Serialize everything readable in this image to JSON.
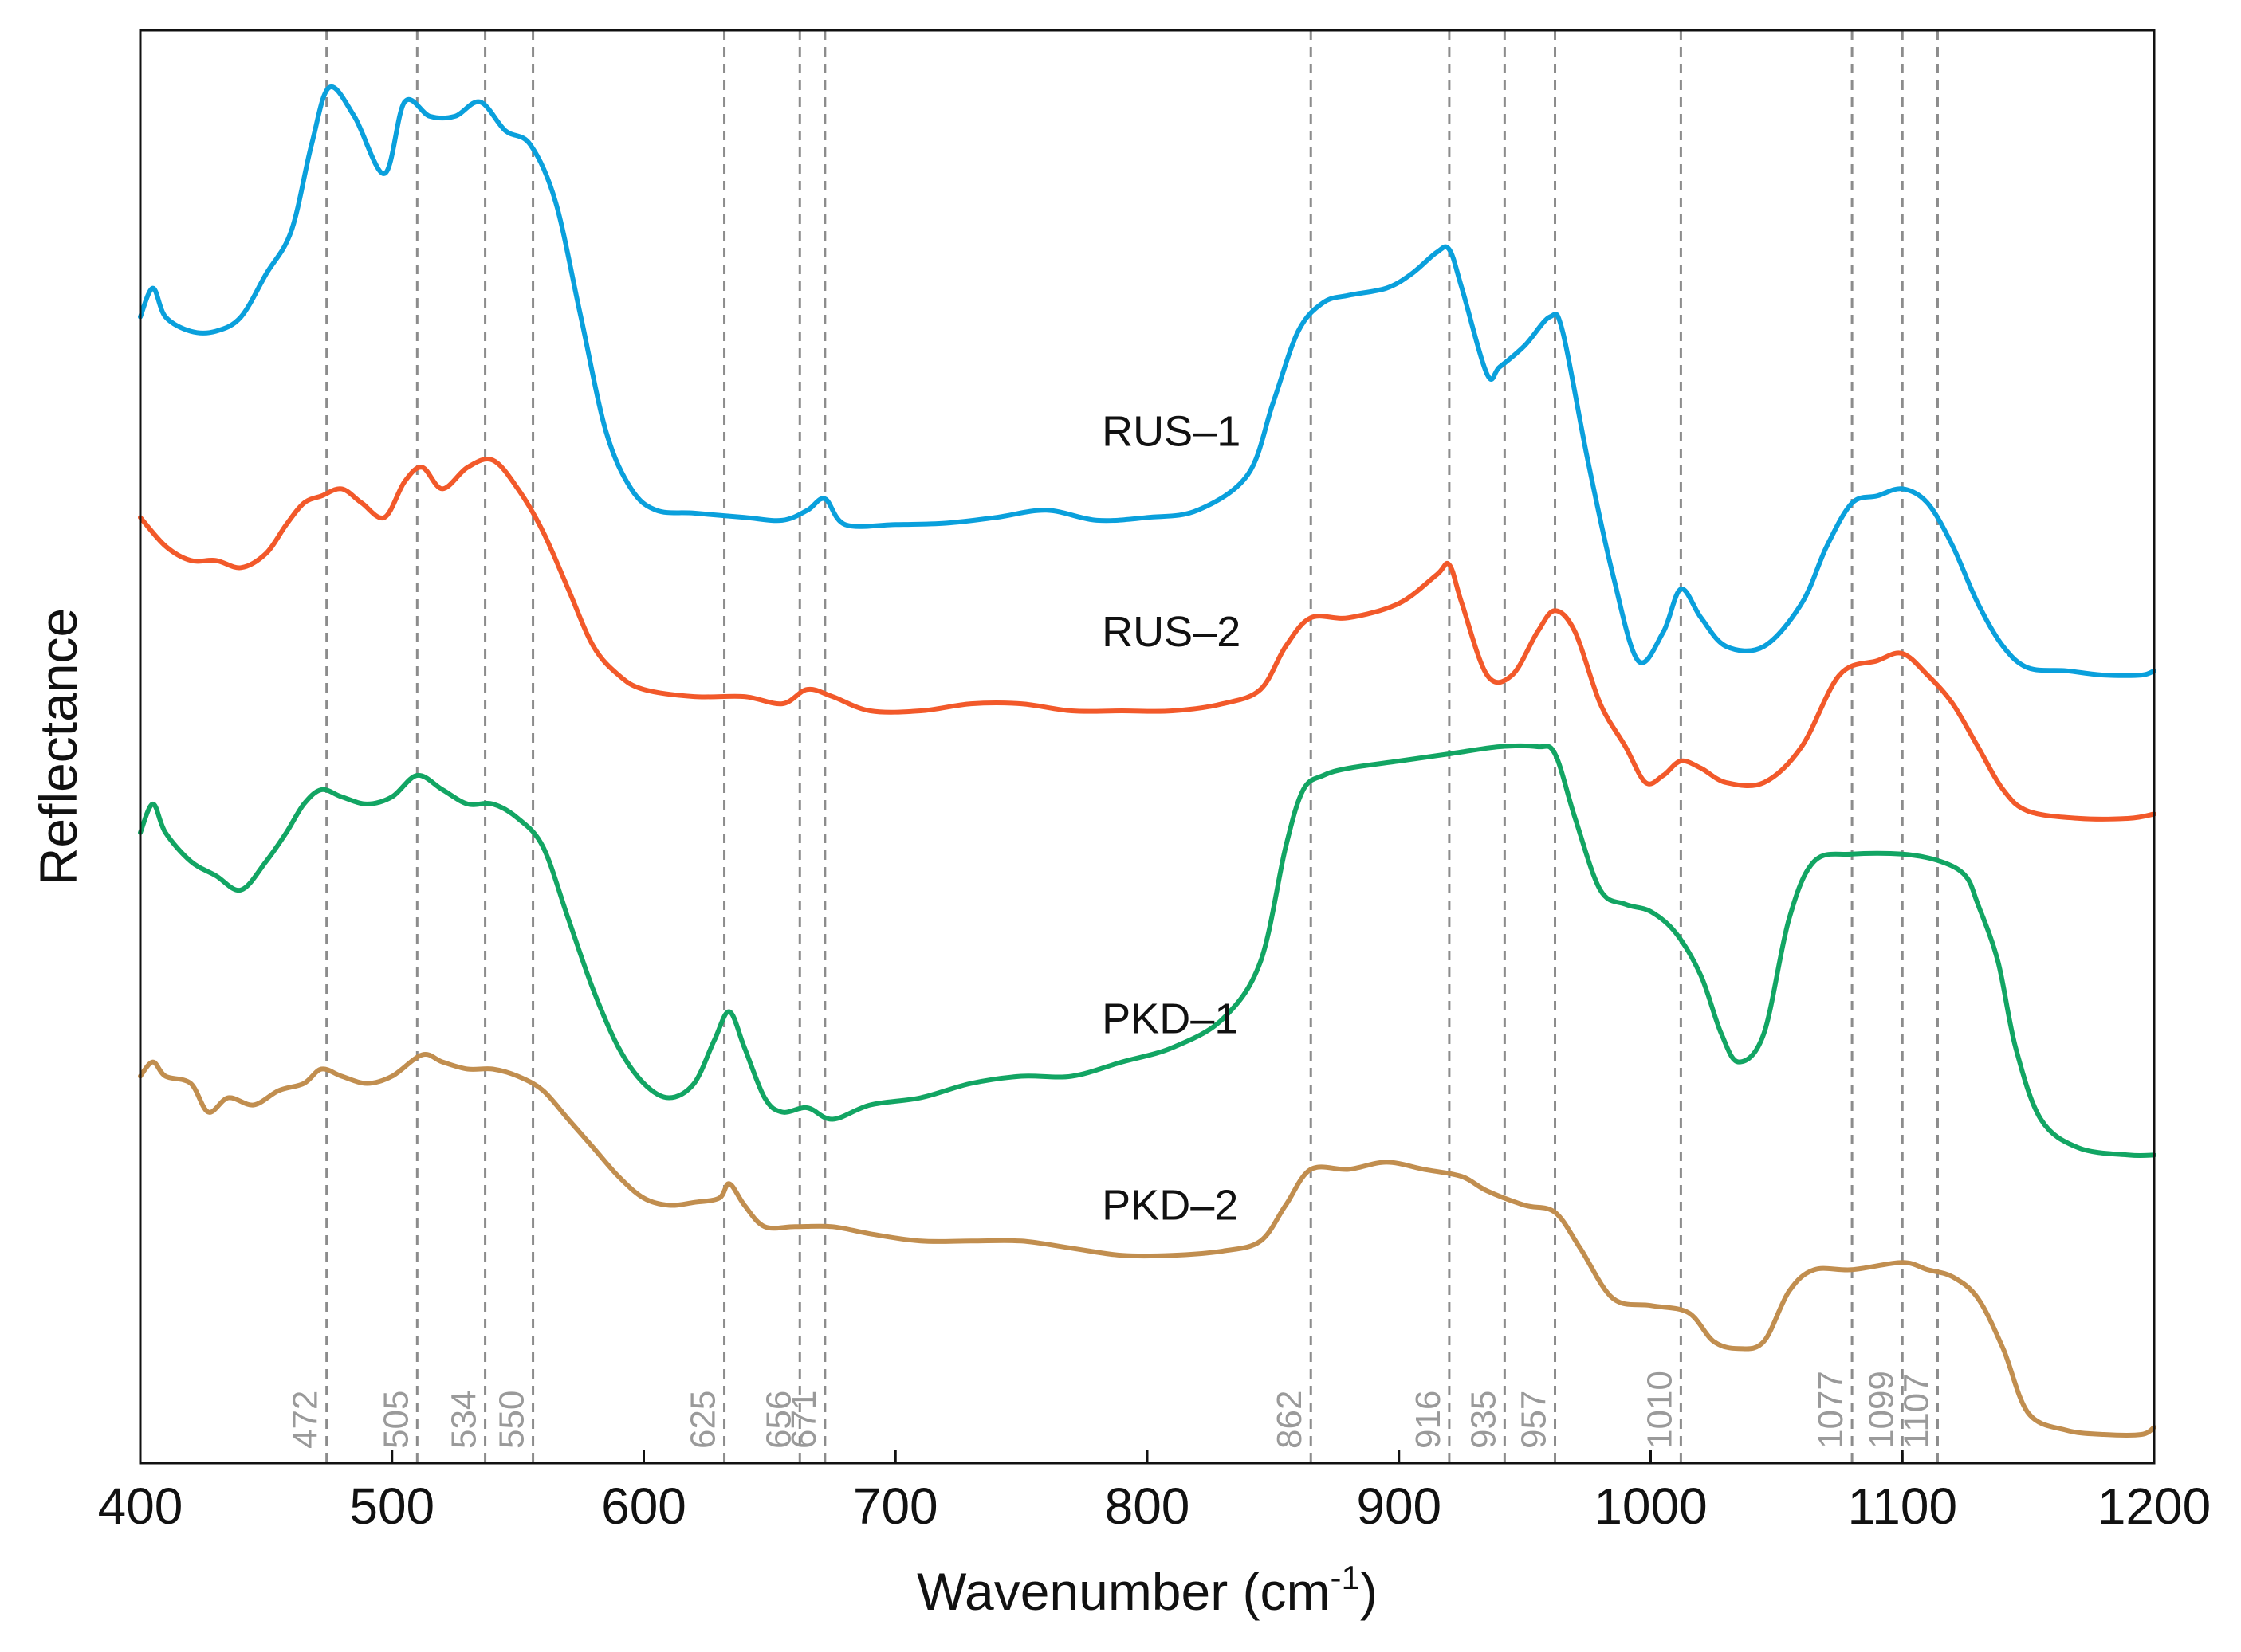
{
  "chart_data": {
    "type": "line",
    "title": "",
    "xlabel": "Wavenumber (cm",
    "xlabel_sup": "-1",
    "xlabel_close": ")",
    "ylabel": "Reflectance",
    "xlim": [
      400,
      1200
    ],
    "ylim": [
      0,
      100
    ],
    "x_ticks": [
      400,
      500,
      600,
      700,
      800,
      900,
      1000,
      1100,
      1200
    ],
    "y_ticks": [],
    "grid": false,
    "reference_lines": [
      {
        "x": 474,
        "label": "472"
      },
      {
        "x": 510,
        "label": "505"
      },
      {
        "x": 537,
        "label": "534"
      },
      {
        "x": 556,
        "label": "550"
      },
      {
        "x": 632,
        "label": "625"
      },
      {
        "x": 662,
        "label": "656"
      },
      {
        "x": 672,
        "label": "671"
      },
      {
        "x": 865,
        "label": "862"
      },
      {
        "x": 920,
        "label": "916"
      },
      {
        "x": 942,
        "label": "935"
      },
      {
        "x": 962,
        "label": "957"
      },
      {
        "x": 1012,
        "label": "1010"
      },
      {
        "x": 1080,
        "label": "1077"
      },
      {
        "x": 1100,
        "label": "1099"
      },
      {
        "x": 1114,
        "label": "1107"
      }
    ],
    "series": [
      {
        "name": "RUS–1",
        "color": "#0aa0dc",
        "label_x": 782,
        "label_y": 71,
        "points": [
          [
            400,
            80
          ],
          [
            405,
            82
          ],
          [
            410,
            80
          ],
          [
            420,
            79
          ],
          [
            430,
            79
          ],
          [
            440,
            80
          ],
          [
            450,
            83
          ],
          [
            460,
            86
          ],
          [
            468,
            92
          ],
          [
            475,
            96
          ],
          [
            485,
            94
          ],
          [
            497,
            90
          ],
          [
            505,
            95
          ],
          [
            515,
            94
          ],
          [
            525,
            94
          ],
          [
            535,
            95
          ],
          [
            545,
            93
          ],
          [
            555,
            92
          ],
          [
            565,
            88
          ],
          [
            575,
            80
          ],
          [
            585,
            72
          ],
          [
            595,
            68
          ],
          [
            605,
            66.5
          ],
          [
            620,
            66.3
          ],
          [
            640,
            66
          ],
          [
            655,
            65.8
          ],
          [
            665,
            66.5
          ],
          [
            672,
            67.3
          ],
          [
            680,
            65.5
          ],
          [
            700,
            65.5
          ],
          [
            720,
            65.6
          ],
          [
            740,
            66
          ],
          [
            760,
            66.5
          ],
          [
            780,
            65.8
          ],
          [
            800,
            66
          ],
          [
            820,
            66.5
          ],
          [
            840,
            69
          ],
          [
            850,
            74
          ],
          [
            860,
            79
          ],
          [
            870,
            81
          ],
          [
            880,
            81.5
          ],
          [
            895,
            82
          ],
          [
            905,
            83
          ],
          [
            915,
            84.5
          ],
          [
            920,
            84.7
          ],
          [
            925,
            82
          ],
          [
            935,
            76
          ],
          [
            940,
            76.5
          ],
          [
            950,
            78
          ],
          [
            960,
            80
          ],
          [
            965,
            79
          ],
          [
            975,
            70
          ],
          [
            985,
            62
          ],
          [
            995,
            56
          ],
          [
            1005,
            58
          ],
          [
            1012,
            61
          ],
          [
            1020,
            59
          ],
          [
            1030,
            57
          ],
          [
            1045,
            57
          ],
          [
            1060,
            60
          ],
          [
            1070,
            64
          ],
          [
            1080,
            67
          ],
          [
            1090,
            67.5
          ],
          [
            1100,
            68
          ],
          [
            1110,
            67
          ],
          [
            1120,
            64
          ],
          [
            1130,
            60
          ],
          [
            1140,
            57
          ],
          [
            1150,
            55.5
          ],
          [
            1165,
            55.3
          ],
          [
            1180,
            55
          ],
          [
            1195,
            55
          ],
          [
            1200,
            55.3
          ]
        ]
      },
      {
        "name": "RUS–2",
        "color": "#f2592a",
        "label_x": 782,
        "label_y": 57,
        "points": [
          [
            400,
            66
          ],
          [
            410,
            64
          ],
          [
            420,
            63
          ],
          [
            430,
            63
          ],
          [
            440,
            62.5
          ],
          [
            450,
            63.5
          ],
          [
            458,
            65.5
          ],
          [
            465,
            67
          ],
          [
            472,
            67.5
          ],
          [
            480,
            68
          ],
          [
            488,
            67
          ],
          [
            497,
            66
          ],
          [
            505,
            68.5
          ],
          [
            512,
            69.5
          ],
          [
            520,
            68
          ],
          [
            530,
            69.5
          ],
          [
            540,
            70
          ],
          [
            550,
            68
          ],
          [
            560,
            65
          ],
          [
            570,
            61
          ],
          [
            580,
            57
          ],
          [
            590,
            55
          ],
          [
            600,
            54
          ],
          [
            620,
            53.5
          ],
          [
            640,
            53.5
          ],
          [
            655,
            53
          ],
          [
            665,
            54
          ],
          [
            675,
            53.5
          ],
          [
            690,
            52.5
          ],
          [
            710,
            52.5
          ],
          [
            730,
            53
          ],
          [
            750,
            53
          ],
          [
            770,
            52.5
          ],
          [
            790,
            52.5
          ],
          [
            810,
            52.5
          ],
          [
            830,
            53
          ],
          [
            845,
            54
          ],
          [
            855,
            57
          ],
          [
            865,
            59
          ],
          [
            880,
            59
          ],
          [
            900,
            60
          ],
          [
            915,
            62
          ],
          [
            920,
            62.7
          ],
          [
            925,
            60
          ],
          [
            935,
            55
          ],
          [
            945,
            55
          ],
          [
            955,
            58
          ],
          [
            962,
            59.5
          ],
          [
            970,
            58
          ],
          [
            980,
            53
          ],
          [
            990,
            50
          ],
          [
            998,
            47.5
          ],
          [
            1005,
            48
          ],
          [
            1012,
            49
          ],
          [
            1020,
            48.5
          ],
          [
            1030,
            47.5
          ],
          [
            1045,
            47.5
          ],
          [
            1060,
            50
          ],
          [
            1075,
            55
          ],
          [
            1090,
            56
          ],
          [
            1100,
            56.5
          ],
          [
            1110,
            55
          ],
          [
            1120,
            53
          ],
          [
            1130,
            50
          ],
          [
            1140,
            47
          ],
          [
            1150,
            45.5
          ],
          [
            1170,
            45
          ],
          [
            1190,
            45
          ],
          [
            1200,
            45.3
          ]
        ]
      },
      {
        "name": "PKD–1",
        "color": "#12a563",
        "label_x": 782,
        "label_y": 30,
        "points": [
          [
            400,
            44
          ],
          [
            405,
            46
          ],
          [
            410,
            44
          ],
          [
            420,
            42
          ],
          [
            430,
            41
          ],
          [
            440,
            40
          ],
          [
            450,
            42
          ],
          [
            458,
            44
          ],
          [
            465,
            46
          ],
          [
            472,
            47
          ],
          [
            480,
            46.5
          ],
          [
            490,
            46
          ],
          [
            500,
            46.5
          ],
          [
            510,
            48
          ],
          [
            520,
            47
          ],
          [
            530,
            46
          ],
          [
            540,
            46
          ],
          [
            550,
            45
          ],
          [
            560,
            43
          ],
          [
            570,
            38
          ],
          [
            580,
            33
          ],
          [
            590,
            29
          ],
          [
            600,
            26.5
          ],
          [
            610,
            25.5
          ],
          [
            620,
            26.5
          ],
          [
            628,
            29.5
          ],
          [
            634,
            31.5
          ],
          [
            640,
            29
          ],
          [
            648,
            25.5
          ],
          [
            655,
            24.5
          ],
          [
            665,
            24.8
          ],
          [
            675,
            24
          ],
          [
            690,
            25
          ],
          [
            710,
            25.5
          ],
          [
            730,
            26.5
          ],
          [
            750,
            27
          ],
          [
            770,
            27
          ],
          [
            790,
            28
          ],
          [
            810,
            29
          ],
          [
            830,
            31
          ],
          [
            845,
            35
          ],
          [
            855,
            43
          ],
          [
            862,
            47
          ],
          [
            870,
            48
          ],
          [
            880,
            48.5
          ],
          [
            900,
            49
          ],
          [
            920,
            49.5
          ],
          [
            940,
            50
          ],
          [
            955,
            50
          ],
          [
            962,
            49.5
          ],
          [
            970,
            45
          ],
          [
            980,
            40
          ],
          [
            990,
            39
          ],
          [
            1000,
            38.5
          ],
          [
            1010,
            37
          ],
          [
            1020,
            34
          ],
          [
            1028,
            30
          ],
          [
            1035,
            28
          ],
          [
            1045,
            30
          ],
          [
            1055,
            38
          ],
          [
            1065,
            42
          ],
          [
            1080,
            42.5
          ],
          [
            1100,
            42.5
          ],
          [
            1115,
            42
          ],
          [
            1125,
            41
          ],
          [
            1130,
            39
          ],
          [
            1138,
            35
          ],
          [
            1145,
            29
          ],
          [
            1155,
            24
          ],
          [
            1170,
            22
          ],
          [
            1190,
            21.5
          ],
          [
            1200,
            21.5
          ]
        ]
      },
      {
        "name": "PKD–2",
        "color": "#c18e4f",
        "label_x": 782,
        "label_y": 17,
        "points": [
          [
            400,
            27
          ],
          [
            405,
            28
          ],
          [
            410,
            27
          ],
          [
            420,
            26.5
          ],
          [
            427,
            24.5
          ],
          [
            435,
            25.5
          ],
          [
            445,
            25
          ],
          [
            455,
            26
          ],
          [
            465,
            26.5
          ],
          [
            472,
            27.5
          ],
          [
            480,
            27
          ],
          [
            490,
            26.5
          ],
          [
            500,
            27
          ],
          [
            512,
            28.5
          ],
          [
            520,
            28
          ],
          [
            530,
            27.5
          ],
          [
            540,
            27.5
          ],
          [
            550,
            27
          ],
          [
            560,
            26
          ],
          [
            570,
            24
          ],
          [
            580,
            22
          ],
          [
            590,
            20
          ],
          [
            600,
            18.5
          ],
          [
            610,
            18
          ],
          [
            620,
            18.2
          ],
          [
            630,
            18.5
          ],
          [
            634,
            19.5
          ],
          [
            640,
            18
          ],
          [
            648,
            16.5
          ],
          [
            660,
            16.5
          ],
          [
            675,
            16.5
          ],
          [
            690,
            16
          ],
          [
            710,
            15.5
          ],
          [
            730,
            15.5
          ],
          [
            750,
            15.5
          ],
          [
            770,
            15
          ],
          [
            790,
            14.5
          ],
          [
            810,
            14.5
          ],
          [
            830,
            14.8
          ],
          [
            845,
            15.5
          ],
          [
            855,
            18
          ],
          [
            865,
            20.5
          ],
          [
            880,
            20.5
          ],
          [
            895,
            21
          ],
          [
            910,
            20.5
          ],
          [
            925,
            20
          ],
          [
            935,
            19
          ],
          [
            950,
            18
          ],
          [
            962,
            17.5
          ],
          [
            972,
            15
          ],
          [
            985,
            11.5
          ],
          [
            1000,
            11
          ],
          [
            1015,
            10.5
          ],
          [
            1025,
            8.5
          ],
          [
            1035,
            8
          ],
          [
            1045,
            8.5
          ],
          [
            1055,
            12
          ],
          [
            1065,
            13.5
          ],
          [
            1080,
            13.5
          ],
          [
            1100,
            14
          ],
          [
            1110,
            13.5
          ],
          [
            1120,
            13
          ],
          [
            1130,
            11.5
          ],
          [
            1140,
            8
          ],
          [
            1150,
            3.5
          ],
          [
            1165,
            2.3
          ],
          [
            1180,
            2
          ],
          [
            1195,
            2
          ],
          [
            1200,
            2.5
          ]
        ]
      }
    ]
  }
}
